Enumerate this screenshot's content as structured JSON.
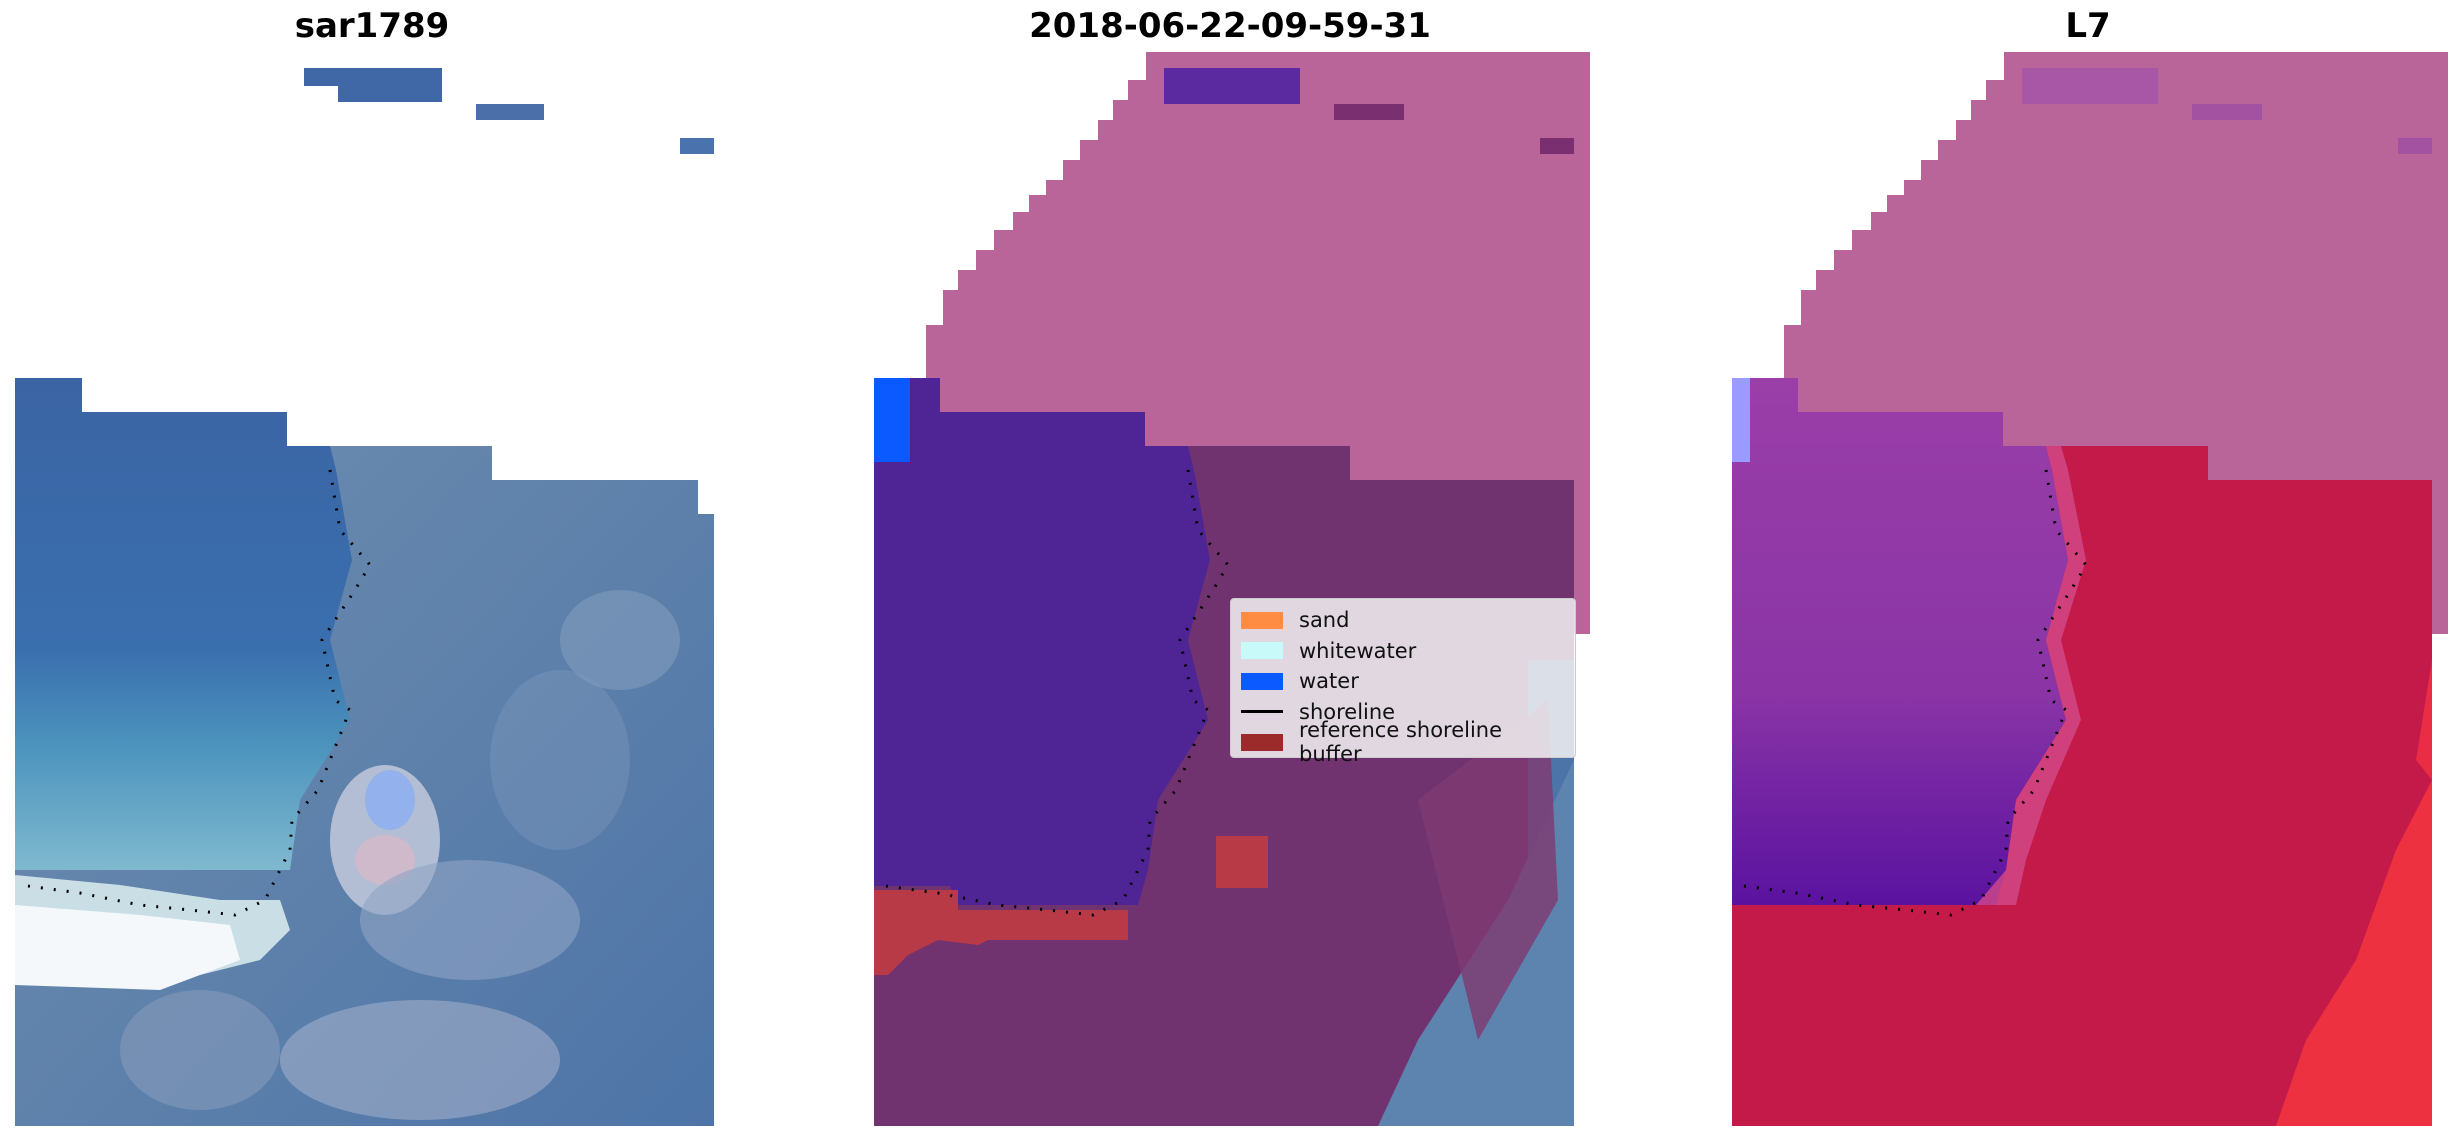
{
  "panels": [
    {
      "title": "sar1789"
    },
    {
      "title": "2018-06-22-09-59-31"
    },
    {
      "title": "L7"
    }
  ],
  "legend": {
    "items": [
      {
        "label": "sand",
        "kind": "patch",
        "color": "#ff8c42"
      },
      {
        "label": "whitewater",
        "kind": "patch",
        "color": "#c8fafa"
      },
      {
        "label": "water",
        "kind": "patch",
        "color": "#0a5aff"
      },
      {
        "label": "shoreline",
        "kind": "line",
        "color": "#000000"
      },
      {
        "label": "reference shoreline buffer",
        "kind": "patch",
        "color": "#9b2a2a"
      }
    ]
  },
  "colors": {
    "deep_water": "#3d68a6",
    "whitewater_surf": "#eef5fa",
    "buffer_overlay": "#b9659a",
    "water_class": "#4f2596",
    "classified_land": "#7a2f6e",
    "l7_water": "#8a3aa6",
    "l7_land": "#c41a4a"
  }
}
